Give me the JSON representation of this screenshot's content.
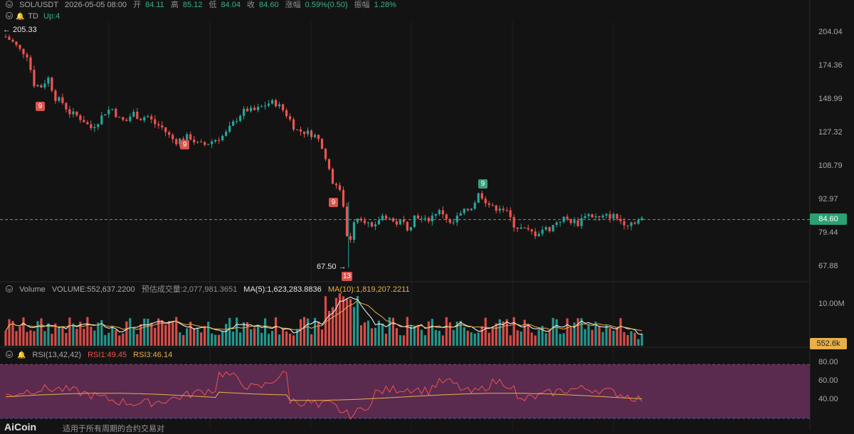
{
  "header": {
    "symbol": "SOL/USDT",
    "datetime": "2026-05-05 08:00",
    "open_label": "开",
    "open": "84.11",
    "high_label": "高",
    "high": "85.12",
    "low_label": "低",
    "low": "84.04",
    "close_label": "收",
    "close": "84.60",
    "change_label": "涨幅",
    "change": "0.59%(0.50)",
    "amp_label": "振幅",
    "amp": "1.28%"
  },
  "td_row": {
    "name": "TD",
    "value": "Up:4"
  },
  "volume_header": {
    "name": "Volume",
    "volume": "VOLUME:552,637.2200",
    "est": "预估成交量:2,077,981.3651",
    "ma5": "MA(5):1,623,283.8836",
    "ma10": "MA(10):1,819,207.2211"
  },
  "rsi_header": {
    "name": "RSI(13,42,42)",
    "rsi1": "RSI1:49.45",
    "rsi3": "RSI3:46.14"
  },
  "price_axis": [
    "204.04",
    "174.36",
    "148.99",
    "127.32",
    "108.79",
    "92.97",
    "79.44",
    "67.88"
  ],
  "volume_axis": [
    "10.00M"
  ],
  "rsi_axis": [
    "80.00",
    "60.00",
    "40.00"
  ],
  "current_price": "84.60",
  "current_volume": "552.6k",
  "annotations": {
    "high": "← 205.33",
    "low": "67.50 →",
    "td_labels": [
      "9",
      "9",
      "9",
      "9",
      "13"
    ]
  },
  "brand": "AiCoin",
  "brand_sub": "适用于所有周期的合约交易对",
  "chart_data": {
    "type": "candlestick",
    "title": "SOL/USDT",
    "price_scale": "log",
    "y_ticks": [
      204.04,
      174.36,
      148.99,
      127.32,
      108.79,
      92.97,
      79.44,
      67.88
    ],
    "extremes": {
      "high": 205.33,
      "low": 67.5
    },
    "last": {
      "open": 84.11,
      "high": 85.12,
      "low": 84.04,
      "close": 84.6
    },
    "close_path": [
      [
        0,
        200
      ],
      [
        10,
        195
      ],
      [
        20,
        188
      ],
      [
        30,
        184
      ],
      [
        40,
        160
      ],
      [
        50,
        158
      ],
      [
        60,
        165
      ],
      [
        70,
        150
      ],
      [
        80,
        147
      ],
      [
        90,
        140
      ],
      [
        100,
        138
      ],
      [
        110,
        135
      ],
      [
        120,
        130
      ],
      [
        130,
        134
      ],
      [
        140,
        140
      ],
      [
        150,
        143
      ],
      [
        160,
        136
      ],
      [
        170,
        134
      ],
      [
        180,
        140
      ],
      [
        190,
        136
      ],
      [
        200,
        138
      ],
      [
        210,
        133
      ],
      [
        220,
        131
      ],
      [
        230,
        126
      ],
      [
        240,
        122
      ],
      [
        250,
        124
      ],
      [
        260,
        125
      ],
      [
        270,
        121
      ],
      [
        280,
        120
      ],
      [
        290,
        122
      ],
      [
        300,
        124
      ],
      [
        310,
        126
      ],
      [
        320,
        132
      ],
      [
        330,
        138
      ],
      [
        340,
        142
      ],
      [
        350,
        141
      ],
      [
        360,
        143
      ],
      [
        370,
        146
      ],
      [
        380,
        147
      ],
      [
        390,
        143
      ],
      [
        400,
        137
      ],
      [
        410,
        129
      ],
      [
        420,
        128
      ],
      [
        430,
        127
      ],
      [
        440,
        125
      ],
      [
        450,
        118
      ],
      [
        460,
        102
      ],
      [
        470,
        99
      ],
      [
        480,
        88
      ],
      [
        485,
        70
      ],
      [
        490,
        84
      ],
      [
        500,
        86
      ],
      [
        510,
        84
      ],
      [
        520,
        80
      ],
      [
        530,
        86
      ],
      [
        540,
        86
      ],
      [
        550,
        83
      ],
      [
        560,
        84
      ],
      [
        570,
        81
      ],
      [
        580,
        87
      ],
      [
        590,
        84
      ],
      [
        600,
        85
      ],
      [
        610,
        88
      ],
      [
        620,
        87
      ],
      [
        630,
        82
      ],
      [
        640,
        86
      ],
      [
        650,
        88
      ],
      [
        660,
        90
      ],
      [
        670,
        96
      ],
      [
        680,
        92
      ],
      [
        690,
        89
      ],
      [
        700,
        90
      ],
      [
        710,
        87
      ],
      [
        720,
        82
      ],
      [
        730,
        81
      ],
      [
        740,
        80
      ],
      [
        750,
        79
      ],
      [
        760,
        81
      ],
      [
        770,
        81
      ],
      [
        780,
        84
      ],
      [
        790,
        85
      ],
      [
        800,
        84
      ],
      [
        810,
        83
      ],
      [
        820,
        87
      ],
      [
        830,
        86
      ],
      [
        840,
        85
      ],
      [
        850,
        86
      ],
      [
        860,
        86
      ],
      [
        870,
        84
      ],
      [
        880,
        83
      ],
      [
        890,
        84
      ],
      [
        900,
        84.6
      ]
    ],
    "volume_ticks": [
      "10.00M"
    ],
    "rsi_ticks": [
      80,
      60,
      40
    ],
    "rsi_last": {
      "rsi1": 49.45,
      "rsi3": 46.14
    },
    "colors": {
      "up": "#26a69a",
      "down": "#ef5350",
      "ma5": "#ffffff",
      "ma10": "#e7b04a",
      "rsi1": "#ef5350",
      "rsi3": "#e7b04a",
      "rsi_band": "#5a2a4f"
    }
  }
}
